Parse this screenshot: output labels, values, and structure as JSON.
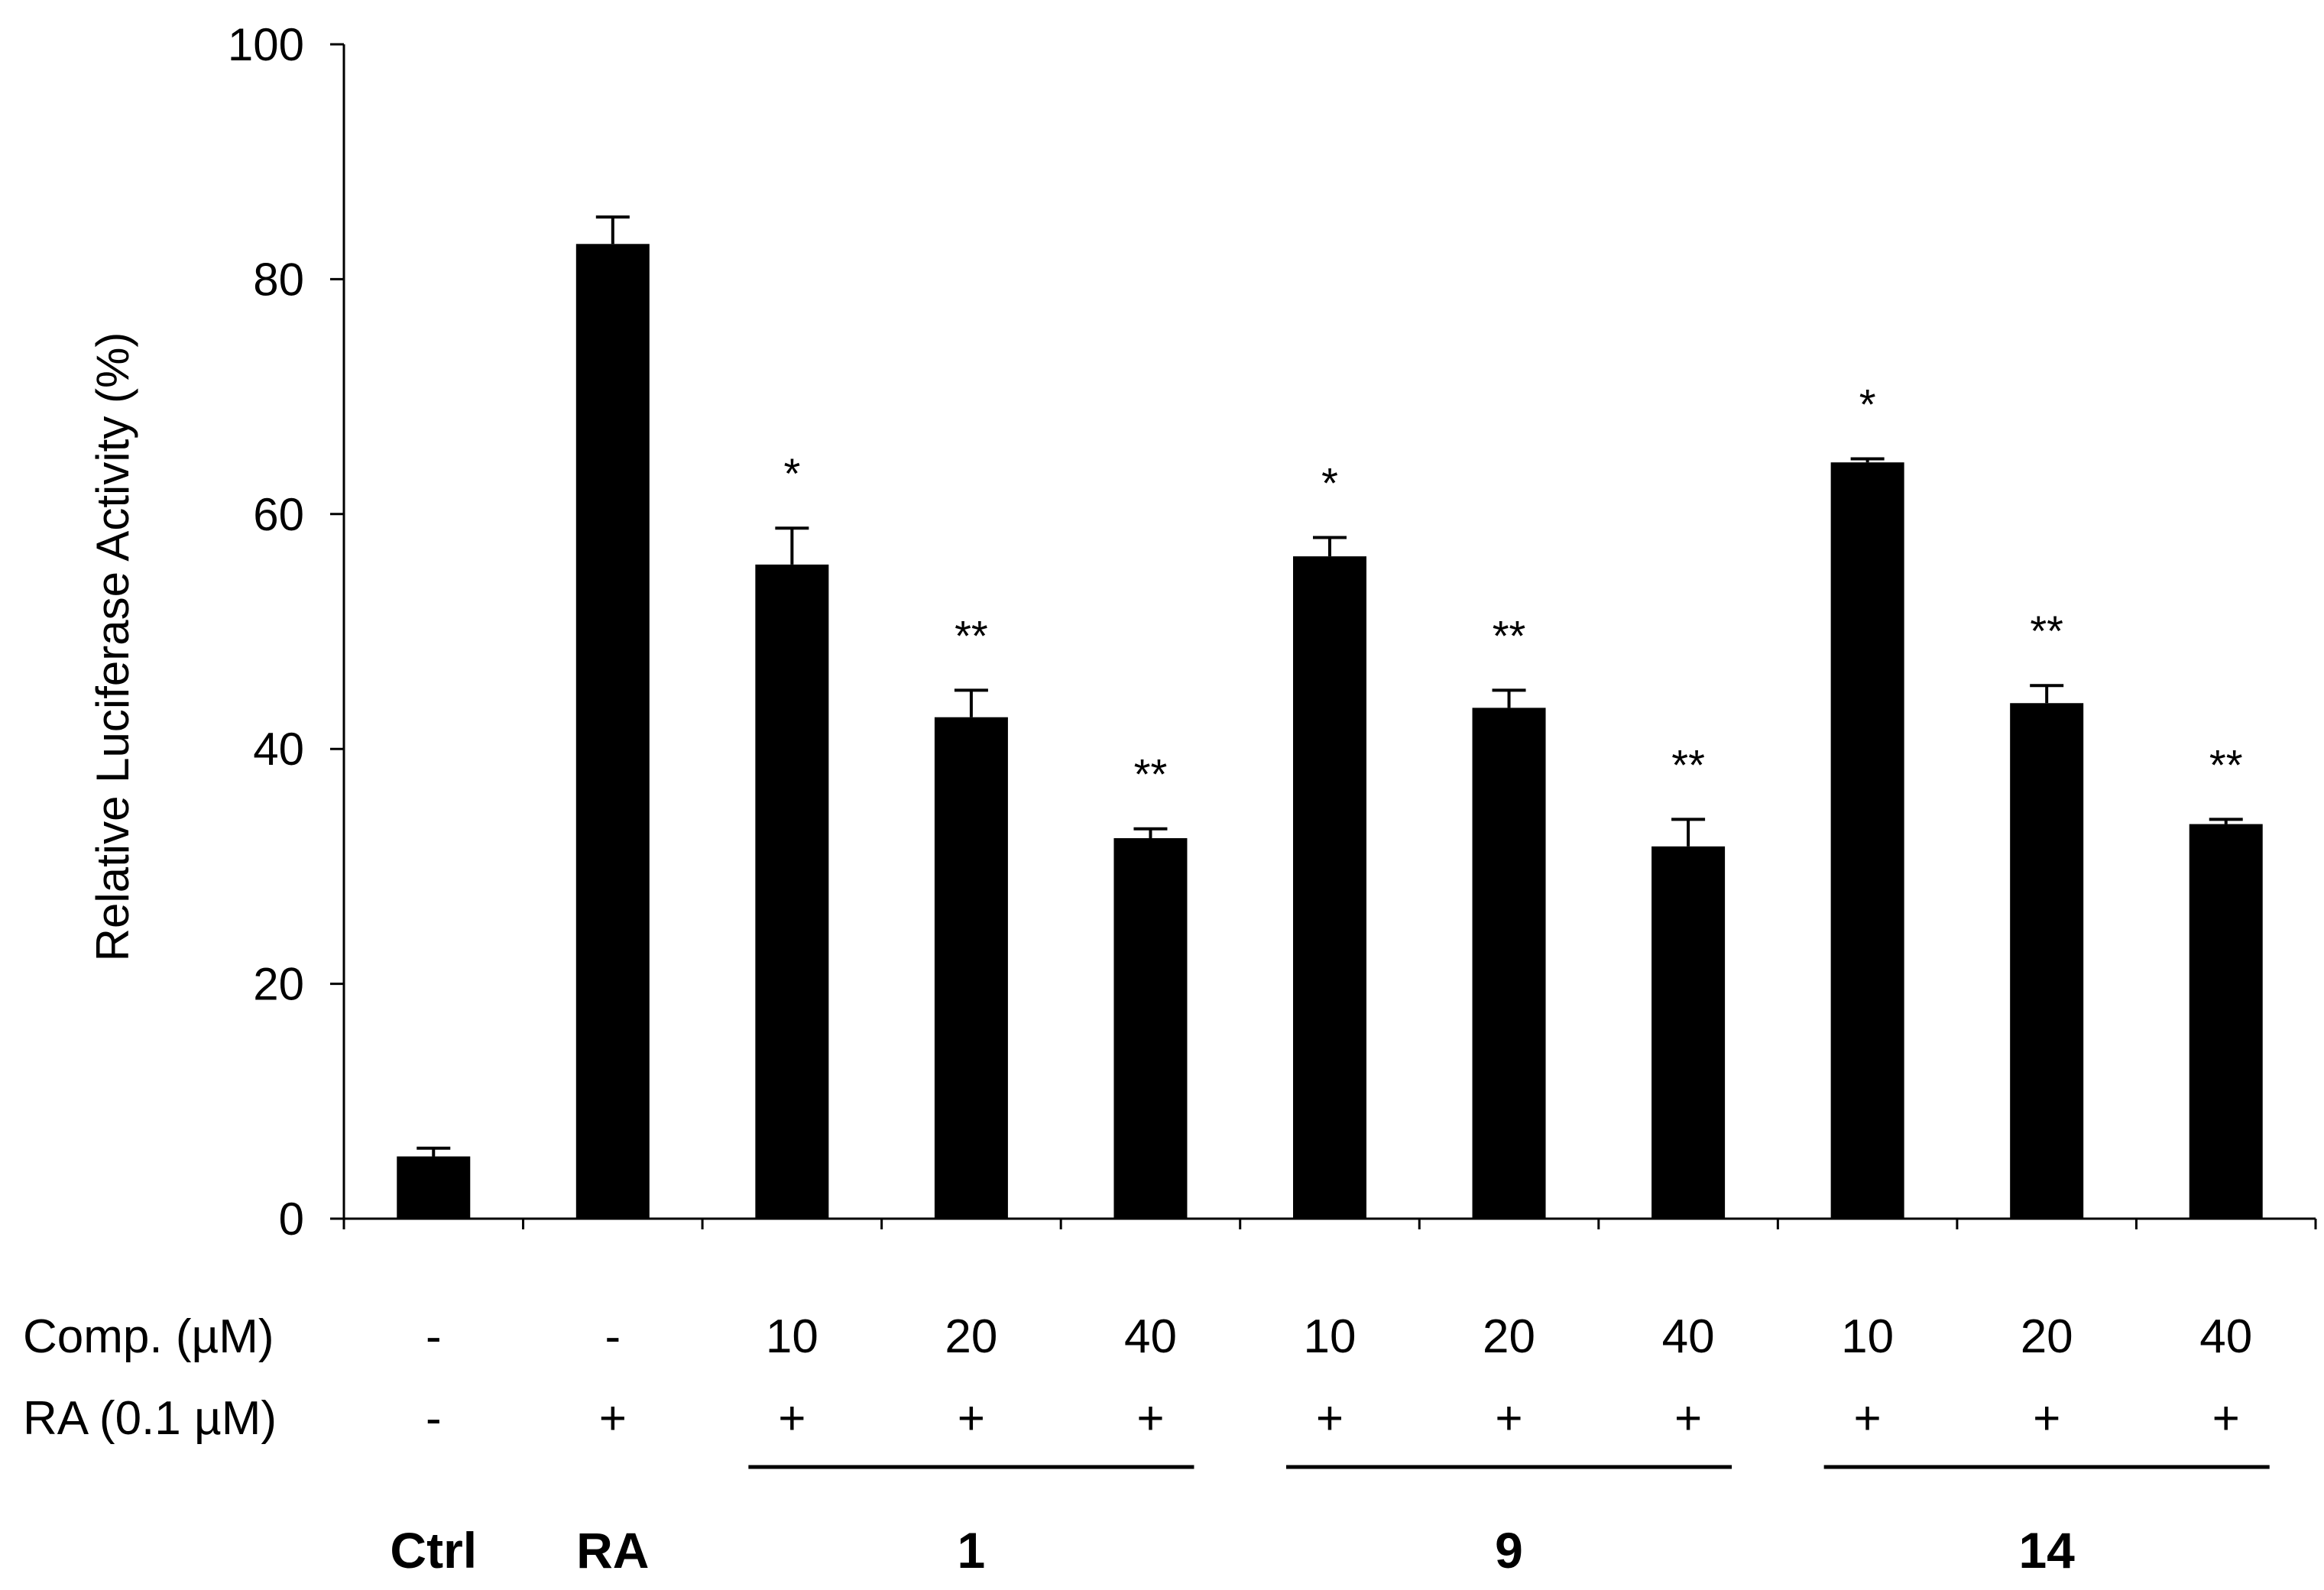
{
  "chart_data": {
    "type": "bar",
    "title": "",
    "xlabel": "",
    "ylabel": "Relative Luciferase Activity (%)",
    "ylim": [
      0,
      100
    ],
    "yticks": [
      0,
      20,
      40,
      60,
      80,
      100
    ],
    "grid": false,
    "bar_color": "#000000",
    "categories": [
      "Ctrl",
      "RA",
      "1 10 µM",
      "1 20 µM",
      "1 40 µM",
      "9 10 µM",
      "9 20 µM",
      "9 40 µM",
      "14 10 µM",
      "14 20 µM",
      "14 40 µM"
    ],
    "values": [
      5.3,
      83.0,
      55.7,
      42.7,
      32.4,
      56.4,
      43.5,
      31.7,
      64.4,
      43.9,
      33.6
    ],
    "errors": [
      0.7,
      2.3,
      3.1,
      2.3,
      0.8,
      1.6,
      1.5,
      2.3,
      0.3,
      1.5,
      0.4
    ],
    "significance": [
      "",
      "",
      "*",
      "**",
      "**",
      "*",
      "**",
      "**",
      "*",
      "**",
      "**"
    ],
    "rows": [
      {
        "label": "Comp. (µM)",
        "values": [
          "-",
          "-",
          "10",
          "20",
          "40",
          "10",
          "20",
          "40",
          "10",
          "20",
          "40"
        ]
      },
      {
        "label": "RA (0.1 µM)",
        "values": [
          "-",
          "+",
          "+",
          "+",
          "+",
          "+",
          "+",
          "+",
          "+",
          "+",
          "+"
        ]
      }
    ],
    "groups": [
      {
        "label": "Ctrl",
        "from": 0,
        "to": 0,
        "underline": false
      },
      {
        "label": "RA",
        "from": 1,
        "to": 1,
        "underline": false
      },
      {
        "label": "1",
        "from": 2,
        "to": 4,
        "underline": true
      },
      {
        "label": "9",
        "from": 5,
        "to": 7,
        "underline": true
      },
      {
        "label": "14",
        "from": 8,
        "to": 10,
        "underline": true
      }
    ]
  }
}
